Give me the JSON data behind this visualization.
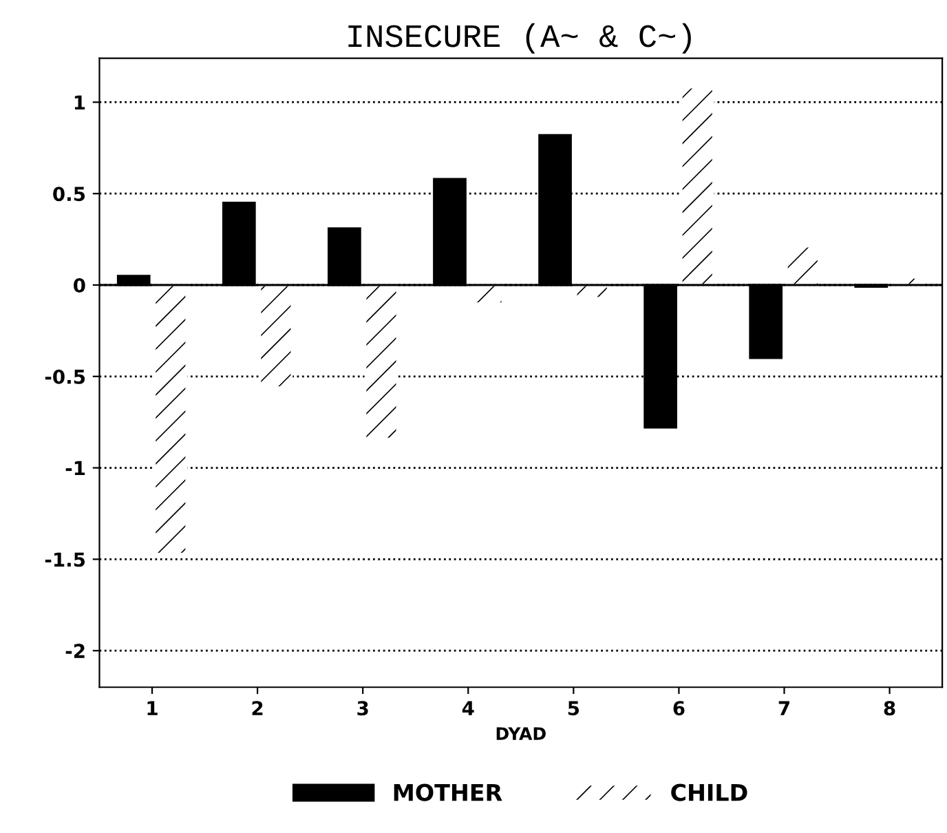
{
  "chart_data": {
    "type": "bar",
    "title": "INSECURE (A~ & C~)",
    "xlabel": "DYAD",
    "categories": [
      "1",
      "2",
      "3",
      "4",
      "5",
      "6",
      "7",
      "8"
    ],
    "series": [
      {
        "name": "MOTHER",
        "color": "#000000",
        "values": [
          0.05,
          0.45,
          0.31,
          0.58,
          0.82,
          -0.78,
          -0.4,
          -0.01
        ]
      },
      {
        "name": "CHILD",
        "color": "#ffffff",
        "values": [
          -1.47,
          -0.56,
          -0.84,
          -0.1,
          -0.07,
          1.08,
          0.21,
          0.04
        ]
      }
    ],
    "ylim": [
      -2.2,
      1.24
    ],
    "yticks": [
      1,
      0.5,
      0,
      -0.5,
      -1,
      -1.5,
      -2
    ],
    "grid": "y",
    "legend": "bottom"
  }
}
